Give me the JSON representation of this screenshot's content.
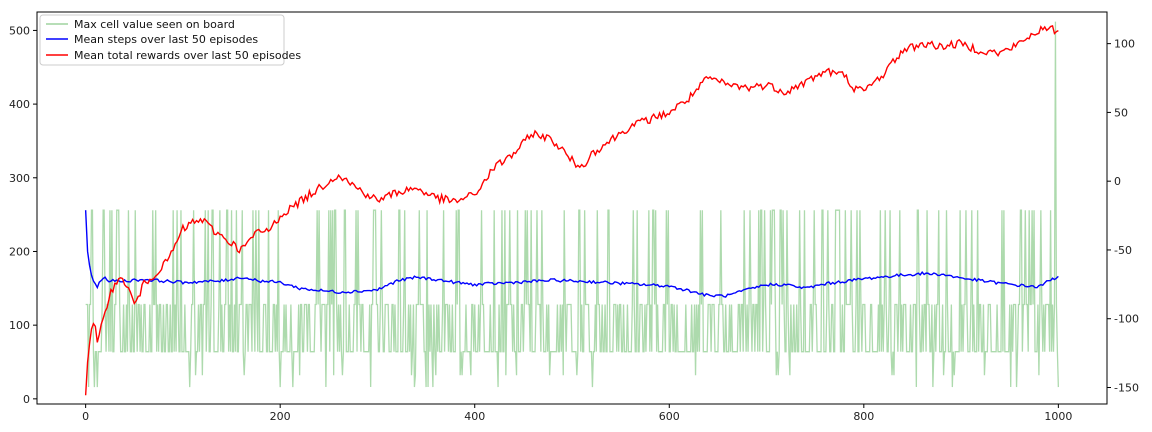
{
  "chart_data": {
    "type": "line",
    "title": "",
    "xlabel": "",
    "ylabel": "",
    "y2label": "",
    "xlim": [
      -50,
      1050
    ],
    "ylim_left": [
      -7,
      525
    ],
    "ylim_right": [
      -162,
      123
    ],
    "x_ticks": [
      0,
      200,
      400,
      600,
      800,
      1000
    ],
    "y_left_ticks": [
      0,
      100,
      200,
      300,
      400,
      500
    ],
    "y_right_ticks": [
      -150,
      -100,
      -50,
      0,
      50,
      100
    ],
    "grid": false,
    "legend_position": "top-left",
    "series": [
      {
        "name": "Max cell value seen on board",
        "axis": "left",
        "color": "#9fd39f",
        "style": "step-noise",
        "levels": [
          16,
          32,
          64,
          128,
          256,
          512
        ],
        "final_spike_x": 997,
        "final_spike_value": 512
      },
      {
        "name": "Mean steps over last 50 episodes",
        "axis": "left",
        "color": "#0000ff",
        "points": [
          [
            0,
            256
          ],
          [
            2,
            200
          ],
          [
            5,
            172
          ],
          [
            8,
            160
          ],
          [
            12,
            152
          ],
          [
            18,
            165
          ],
          [
            25,
            160
          ],
          [
            40,
            160
          ],
          [
            60,
            162
          ],
          [
            80,
            160
          ],
          [
            100,
            158
          ],
          [
            140,
            160
          ],
          [
            160,
            165
          ],
          [
            180,
            160
          ],
          [
            200,
            158
          ],
          [
            220,
            150
          ],
          [
            240,
            147
          ],
          [
            260,
            145
          ],
          [
            280,
            146
          ],
          [
            300,
            148
          ],
          [
            320,
            160
          ],
          [
            340,
            165
          ],
          [
            360,
            162
          ],
          [
            380,
            158
          ],
          [
            400,
            155
          ],
          [
            440,
            158
          ],
          [
            480,
            161
          ],
          [
            520,
            159
          ],
          [
            560,
            156
          ],
          [
            600,
            153
          ],
          [
            620,
            147
          ],
          [
            640,
            140
          ],
          [
            660,
            140
          ],
          [
            680,
            148
          ],
          [
            700,
            155
          ],
          [
            720,
            155
          ],
          [
            740,
            150
          ],
          [
            760,
            156
          ],
          [
            800,
            163
          ],
          [
            840,
            168
          ],
          [
            860,
            170
          ],
          [
            880,
            169
          ],
          [
            900,
            164
          ],
          [
            940,
            157
          ],
          [
            960,
            154
          ],
          [
            980,
            152
          ],
          [
            990,
            160
          ],
          [
            1000,
            166
          ]
        ]
      },
      {
        "name": "Mean total rewards over last 50 episodes",
        "axis": "right",
        "color": "#ff0000",
        "points": [
          [
            0,
            -153
          ],
          [
            3,
            -120
          ],
          [
            6,
            -110
          ],
          [
            9,
            -100
          ],
          [
            12,
            -120
          ],
          [
            15,
            -110
          ],
          [
            25,
            -80
          ],
          [
            38,
            -70
          ],
          [
            45,
            -80
          ],
          [
            50,
            -90
          ],
          [
            60,
            -75
          ],
          [
            70,
            -68
          ],
          [
            82,
            -60
          ],
          [
            90,
            -50
          ],
          [
            100,
            -35
          ],
          [
            110,
            -30
          ],
          [
            120,
            -28
          ],
          [
            130,
            -35
          ],
          [
            140,
            -40
          ],
          [
            150,
            -45
          ],
          [
            160,
            -50
          ],
          [
            175,
            -38
          ],
          [
            190,
            -35
          ],
          [
            200,
            -25
          ],
          [
            220,
            -15
          ],
          [
            240,
            -5
          ],
          [
            260,
            5
          ],
          [
            275,
            -3
          ],
          [
            290,
            -10
          ],
          [
            300,
            -14
          ],
          [
            320,
            -8
          ],
          [
            340,
            -5
          ],
          [
            360,
            -12
          ],
          [
            380,
            -15
          ],
          [
            390,
            -12
          ],
          [
            400,
            -10
          ],
          [
            420,
            10
          ],
          [
            440,
            20
          ],
          [
            460,
            35
          ],
          [
            480,
            30
          ],
          [
            500,
            15
          ],
          [
            510,
            10
          ],
          [
            520,
            20
          ],
          [
            540,
            30
          ],
          [
            560,
            40
          ],
          [
            580,
            45
          ],
          [
            600,
            50
          ],
          [
            620,
            60
          ],
          [
            640,
            75
          ],
          [
            660,
            70
          ],
          [
            680,
            68
          ],
          [
            700,
            70
          ],
          [
            720,
            65
          ],
          [
            740,
            72
          ],
          [
            760,
            80
          ],
          [
            780,
            77
          ],
          [
            790,
            68
          ],
          [
            800,
            65
          ],
          [
            820,
            78
          ],
          [
            840,
            95
          ],
          [
            860,
            100
          ],
          [
            880,
            98
          ],
          [
            900,
            100
          ],
          [
            920,
            95
          ],
          [
            940,
            93
          ],
          [
            960,
            100
          ],
          [
            980,
            110
          ],
          [
            1000,
            110
          ]
        ]
      }
    ]
  }
}
